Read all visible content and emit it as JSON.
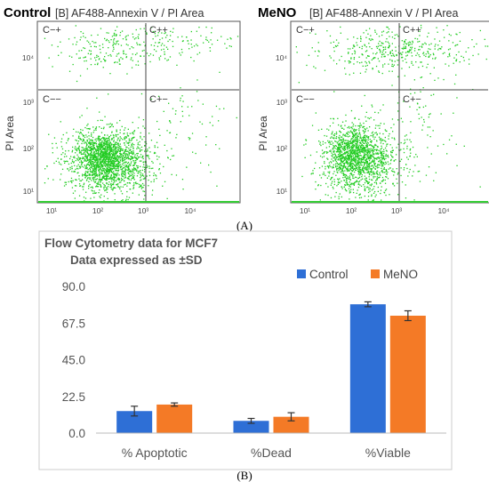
{
  "figure": {
    "panel_a_caption": "(A)",
    "panel_b_caption": "(B)"
  },
  "scatter": {
    "plot_title": "[B] AF488-Annexin V / PI Area",
    "y_axis_label": "PI Area",
    "x_ticks": [
      "10¹",
      "10²",
      "10³",
      "10⁴"
    ],
    "y_ticks": [
      "10¹",
      "10²",
      "10³",
      "10⁴"
    ],
    "quadrants": [
      "C−+",
      "C++",
      "C−−",
      "C+−"
    ],
    "point_color": "#22cc22",
    "gate_color": "#33cc33",
    "panels": [
      {
        "name": "Control"
      },
      {
        "name": "MeNO"
      }
    ]
  },
  "chart_data": {
    "type": "bar",
    "title": "Flow Cytometry data for MCF7",
    "subtitle": "Data expressed as ±SD",
    "categories": [
      "% Apoptotic",
      "%Dead",
      "%Viable"
    ],
    "series": [
      {
        "name": "Control",
        "values": [
          13.5,
          7.5,
          79
        ],
        "errors": [
          3.0,
          1.5,
          1.5
        ],
        "color": "#2e6fd6"
      },
      {
        "name": "MeNO",
        "values": [
          17.5,
          10,
          72
        ],
        "errors": [
          1.0,
          2.5,
          3.0
        ],
        "color": "#f47a26"
      }
    ],
    "ylim": [
      0,
      90
    ],
    "y_ticks": [
      "0.0",
      "22.5",
      "45.0",
      "67.5",
      "90.0"
    ],
    "y_tick_values": [
      0,
      22.5,
      45,
      67.5,
      90
    ],
    "grid": false,
    "legend_position": "top-right"
  }
}
